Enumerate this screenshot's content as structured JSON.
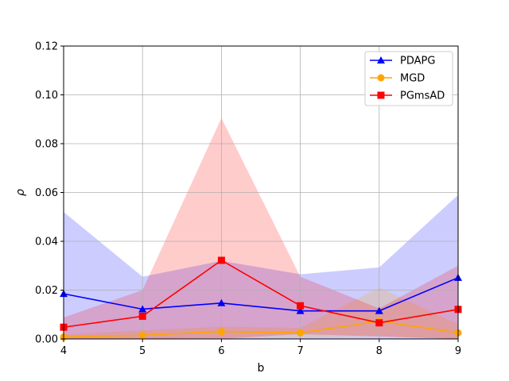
{
  "chart_data": {
    "type": "line",
    "title": "",
    "xlabel": "b",
    "ylabel": "ρ",
    "x": [
      4,
      5,
      6,
      7,
      8,
      9
    ],
    "xlim": [
      4,
      9
    ],
    "ylim": [
      0,
      0.12
    ],
    "xticks": [
      "4",
      "5",
      "6",
      "7",
      "8",
      "9"
    ],
    "yticks": [
      "0.00",
      "0.02",
      "0.04",
      "0.06",
      "0.08",
      "0.10",
      "0.12"
    ],
    "ytick_values": [
      0,
      0.02,
      0.04,
      0.06,
      0.08,
      0.1,
      0.12
    ],
    "grid": true,
    "legend_position": "top-right",
    "series": [
      {
        "name": "PDAPG",
        "color": "#0000ff",
        "marker": "triangle",
        "values": [
          0.0185,
          0.0122,
          0.0147,
          0.0115,
          0.0115,
          0.0251
        ],
        "band_upper": [
          0.052,
          0.0255,
          0.032,
          0.0265,
          0.0293,
          0.059
        ],
        "band_lower": [
          0.0,
          0.0,
          0.0,
          0.0,
          0.0,
          0.0
        ],
        "band_color": "rgba(0,0,255,0.2)"
      },
      {
        "name": "MGD",
        "color": "#ffa500",
        "marker": "circle",
        "values": [
          0.0008,
          0.0015,
          0.003,
          0.0025,
          0.0073,
          0.0025
        ],
        "band_upper": [
          0.0018,
          0.0035,
          0.005,
          0.0045,
          0.021,
          0.006
        ],
        "band_lower": [
          0.0,
          0.0,
          0.0005,
          0.0005,
          0.001,
          0.0
        ],
        "band_color": "rgba(255,165,0,0.2)"
      },
      {
        "name": "PGmsAD",
        "color": "#ff0000",
        "marker": "square",
        "values": [
          0.0048,
          0.0093,
          0.0322,
          0.0136,
          0.0066,
          0.0121
        ],
        "band_upper": [
          0.0088,
          0.02,
          0.0905,
          0.0255,
          0.0125,
          0.03
        ],
        "band_lower": [
          0.0,
          0.0,
          0.0,
          0.002,
          0.001,
          0.0
        ],
        "band_color": "rgba(255,0,0,0.2)"
      }
    ]
  }
}
